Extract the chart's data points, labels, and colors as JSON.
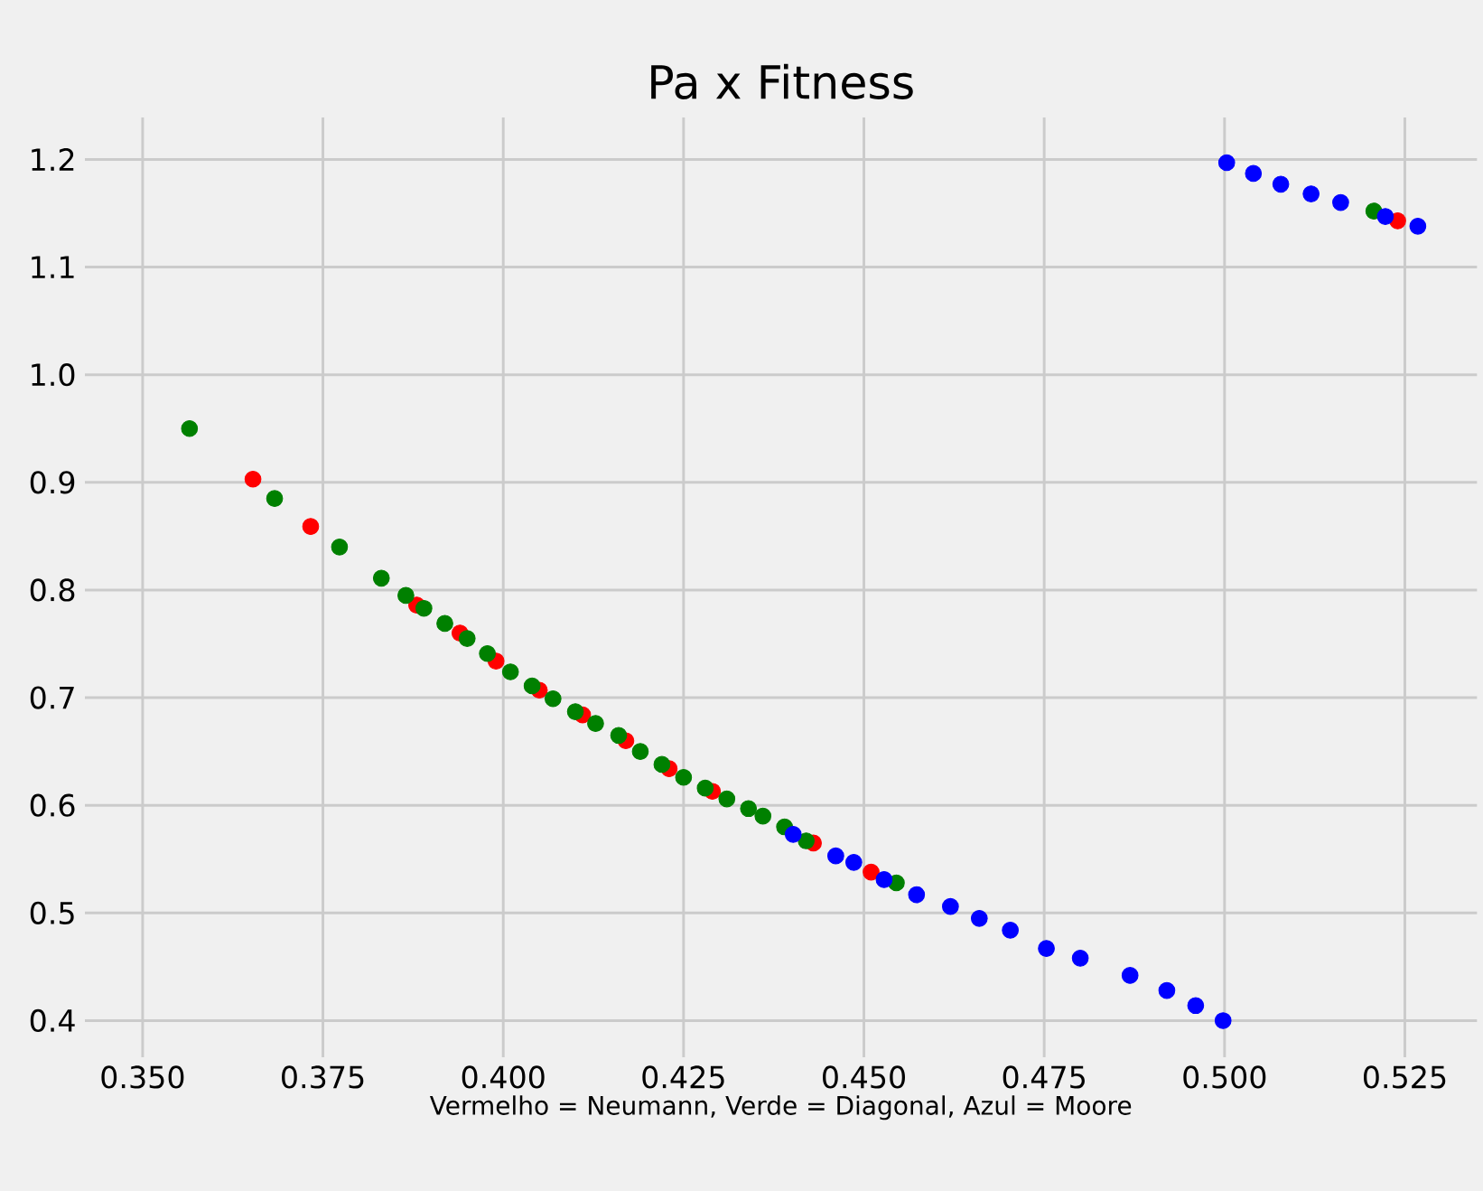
{
  "chart_data": {
    "type": "scatter",
    "title": "Pa x Fitness",
    "xlabel": "Vermelho = Neumann, Verde = Diagonal, Azul = Moore",
    "xlim": [
      0.342,
      0.535
    ],
    "ylim": [
      0.366,
      1.239
    ],
    "xticks": [
      {
        "value": 0.35,
        "label": "0.350"
      },
      {
        "value": 0.375,
        "label": "0.375"
      },
      {
        "value": 0.4,
        "label": "0.400"
      },
      {
        "value": 0.425,
        "label": "0.425"
      },
      {
        "value": 0.45,
        "label": "0.450"
      },
      {
        "value": 0.475,
        "label": "0.475"
      },
      {
        "value": 0.5,
        "label": "0.500"
      },
      {
        "value": 0.525,
        "label": "0.525"
      }
    ],
    "yticks": [
      0.4,
      0.5,
      0.6,
      0.7,
      0.8,
      0.9,
      {
        "value": 1.0,
        "label": "1.0"
      },
      1.1,
      1.2
    ],
    "grid": true,
    "series": [
      {
        "color": "#ff0000",
        "x": [
          0.3653,
          0.3733,
          0.388,
          0.394,
          0.399,
          0.405,
          0.411,
          0.417,
          0.423,
          0.429,
          0.435,
          0.443,
          0.451,
          0.524
        ],
        "values": [
          0.903,
          0.859,
          0.786,
          0.76,
          0.734,
          0.707,
          0.684,
          0.66,
          0.634,
          0.613,
          null,
          0.565,
          0.538,
          1.143
        ]
      },
      {
        "color": "#008000",
        "x": [
          0.3565,
          0.3683,
          0.3773,
          0.3831,
          0.3865,
          0.389,
          0.3919,
          0.395,
          0.3978,
          0.401,
          0.404,
          0.4069,
          0.41,
          0.4128,
          0.416,
          0.419,
          0.422,
          0.425,
          0.428,
          0.431,
          0.434,
          0.436,
          0.439,
          0.442,
          0.448,
          0.4545,
          0.458,
          0.5207
        ],
        "values": [
          0.95,
          0.885,
          0.84,
          0.811,
          0.795,
          0.783,
          0.769,
          0.755,
          0.741,
          0.724,
          0.711,
          0.699,
          0.687,
          0.676,
          0.665,
          0.65,
          0.638,
          0.626,
          0.616,
          0.606,
          0.597,
          0.59,
          0.58,
          0.567,
          null,
          0.528,
          null,
          1.152
        ]
      },
      {
        "color": "#0000ff",
        "x": [
          0.4402,
          0.4461,
          0.4486,
          0.4528,
          0.4573,
          0.462,
          0.466,
          0.4703,
          0.4753,
          0.48,
          0.4869,
          0.492,
          0.496,
          0.4998,
          0.5003,
          0.504,
          0.5078,
          0.512,
          0.5161,
          0.5223,
          0.5268
        ],
        "values": [
          0.573,
          0.553,
          0.547,
          0.531,
          0.517,
          0.506,
          0.495,
          0.484,
          0.467,
          0.458,
          0.442,
          0.428,
          0.414,
          0.4,
          1.197,
          1.187,
          1.177,
          1.168,
          1.16,
          1.147,
          1.138
        ]
      }
    ]
  }
}
